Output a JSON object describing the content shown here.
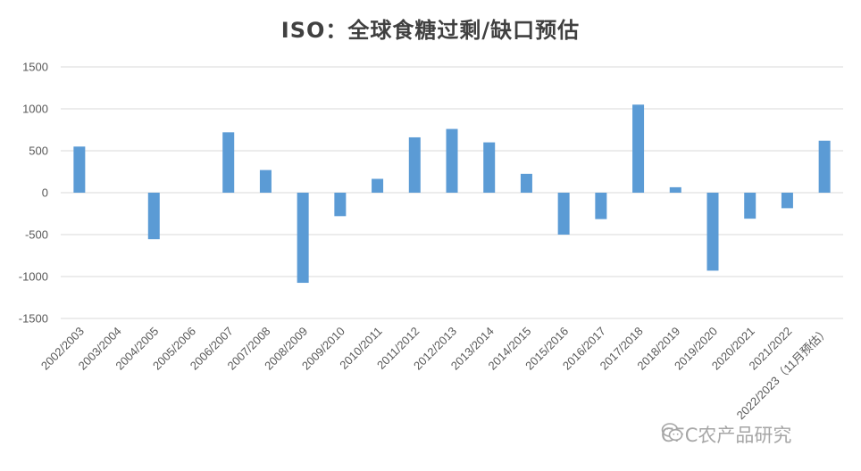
{
  "chart_data": {
    "type": "bar",
    "title": "ISO：全球食糖过剩/缺口预估",
    "categories": [
      "2002/2003",
      "2003/2004",
      "2004/2005",
      "2005/2006",
      "2006/2007",
      "2007/2008",
      "2008/2009",
      "2009/2010",
      "2010/2011",
      "2011/2012",
      "2012/2013",
      "2013/2014",
      "2014/2015",
      "2015/2016",
      "2016/2017",
      "2017/2018",
      "2018/2019",
      "2019/2020",
      "2020/2021",
      "2021/2022",
      "2022/2023（11月预估）"
    ],
    "values": [
      550,
      0,
      -555,
      0,
      720,
      270,
      -1075,
      -280,
      165,
      660,
      760,
      600,
      225,
      -500,
      -315,
      1050,
      65,
      -930,
      -310,
      -185,
      620
    ],
    "ylim": [
      -1500,
      1500
    ],
    "yticks": [
      1500,
      1000,
      500,
      0,
      -500,
      -1000,
      -1500
    ],
    "grid": true,
    "bar_color": "#5b9bd5",
    "grid_color": "#d9d9d9"
  },
  "watermark": {
    "text": "CFC农产品研究",
    "icon": "wechat-icon"
  }
}
